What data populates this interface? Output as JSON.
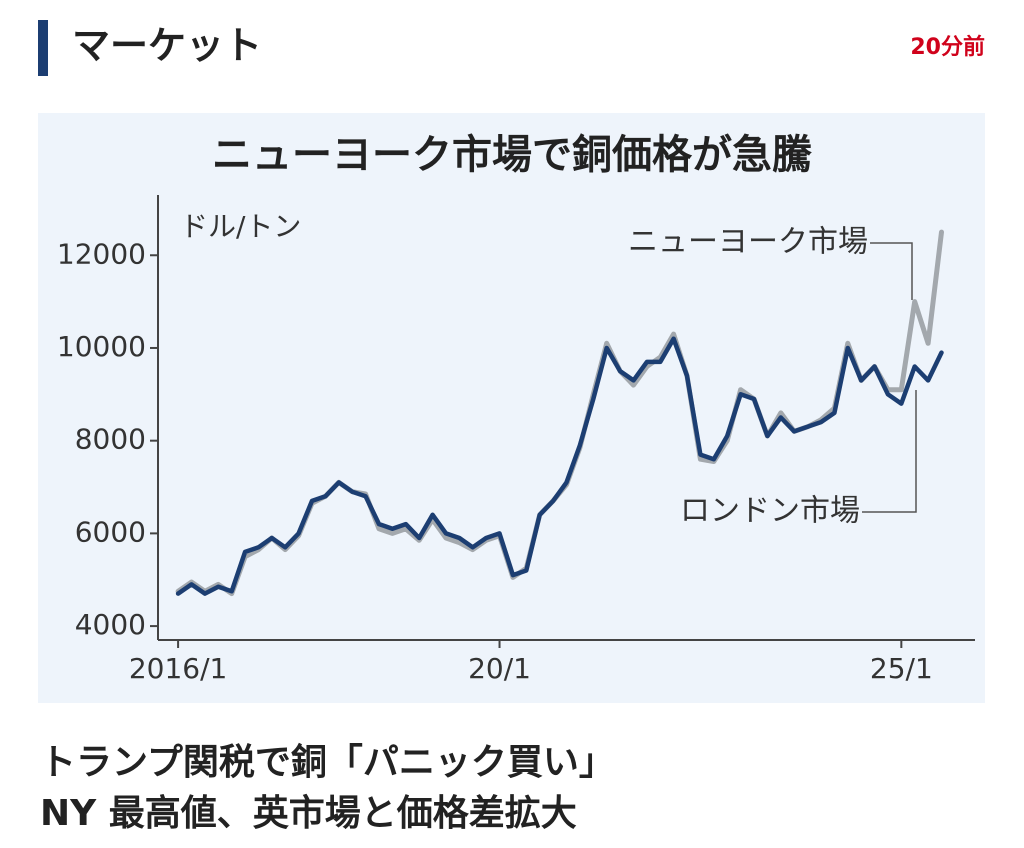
{
  "header": {
    "title": "マーケット",
    "time": "20分前"
  },
  "chart_data": {
    "type": "line",
    "title": "ニューヨーク市場で銅価格が急騰",
    "y_label": "ドル/トン",
    "x": [
      "2016-01",
      "2016-03",
      "2016-05",
      "2016-07",
      "2016-09",
      "2016-11",
      "2017-01",
      "2017-03",
      "2017-05",
      "2017-07",
      "2017-09",
      "2017-11",
      "2018-01",
      "2018-03",
      "2018-05",
      "2018-07",
      "2018-09",
      "2018-11",
      "2019-01",
      "2019-03",
      "2019-05",
      "2019-07",
      "2019-09",
      "2019-11",
      "2020-01",
      "2020-03",
      "2020-05",
      "2020-07",
      "2020-09",
      "2020-11",
      "2021-01",
      "2021-03",
      "2021-05",
      "2021-07",
      "2021-09",
      "2021-11",
      "2022-01",
      "2022-03",
      "2022-05",
      "2022-07",
      "2022-09",
      "2022-11",
      "2023-01",
      "2023-03",
      "2023-05",
      "2023-07",
      "2023-09",
      "2023-11",
      "2024-01",
      "2024-03",
      "2024-05",
      "2024-07",
      "2024-09",
      "2024-11",
      "2025-01",
      "2025-03",
      "2025-05",
      "2025-07"
    ],
    "series": [
      {
        "name": "ニューヨーク市場",
        "color": "#a3a8ad",
        "values": [
          4750,
          4950,
          4750,
          4900,
          4700,
          5500,
          5650,
          5900,
          5650,
          5950,
          6650,
          6800,
          7100,
          6900,
          6850,
          6100,
          6000,
          6100,
          5850,
          6300,
          5900,
          5800,
          5650,
          5850,
          5950,
          5050,
          5250,
          6400,
          6700,
          7050,
          7850,
          9000,
          10100,
          9500,
          9200,
          9600,
          9800,
          10300,
          9400,
          7600,
          7550,
          8000,
          9100,
          8900,
          8100,
          8600,
          8200,
          8300,
          8450,
          8700,
          10100,
          9300,
          9600,
          9100,
          9100,
          11000,
          10100,
          12500
        ]
      },
      {
        "name": "ロンドン市場",
        "color": "#1c3e72",
        "values": [
          4700,
          4900,
          4700,
          4850,
          4750,
          5600,
          5700,
          5900,
          5700,
          6000,
          6700,
          6800,
          7100,
          6900,
          6800,
          6200,
          6100,
          6200,
          5900,
          6400,
          6000,
          5900,
          5700,
          5900,
          6000,
          5100,
          5200,
          6400,
          6700,
          7100,
          7900,
          8900,
          10000,
          9500,
          9300,
          9700,
          9700,
          10200,
          9400,
          7700,
          7600,
          8100,
          9000,
          8900,
          8100,
          8500,
          8200,
          8300,
          8400,
          8600,
          10000,
          9300,
          9600,
          9000,
          8800,
          9600,
          9300,
          9900
        ]
      }
    ],
    "xlim": [
      "2015-10",
      "2025-12"
    ],
    "xticks": [
      {
        "value": "2016-01",
        "label": "2016/1"
      },
      {
        "value": "2020-01",
        "label": "20/1"
      },
      {
        "value": "2025-01",
        "label": "25/1"
      }
    ],
    "ylim": [
      3700,
      13300
    ],
    "yticks": [
      4000,
      6000,
      8000,
      10000,
      12000
    ],
    "grid": false
  },
  "headline": [
    "トランプ関税で銅「パニック買い」",
    "NY 最高値、英市場と価格差拡大"
  ]
}
